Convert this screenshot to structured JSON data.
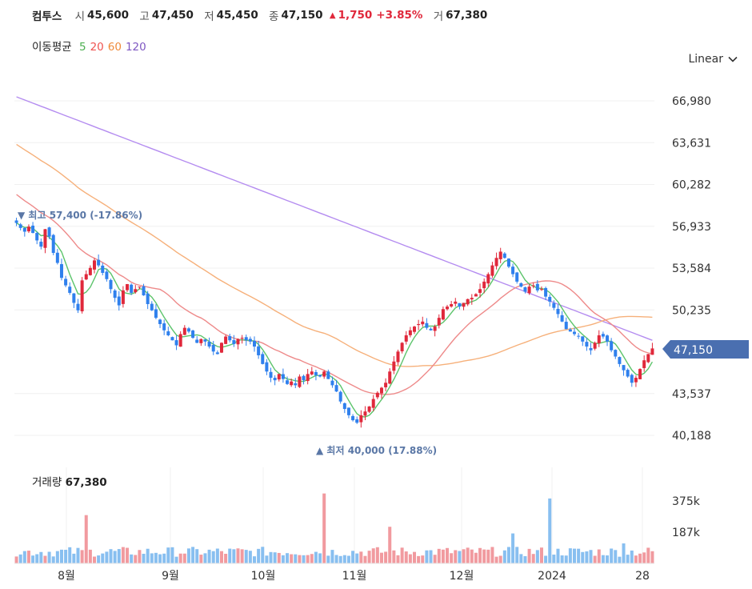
{
  "header": {
    "name": "컴투스",
    "open_label": "시",
    "open": "45,600",
    "high_label": "고",
    "high": "47,450",
    "low_label": "저",
    "low": "45,450",
    "close_label": "종",
    "close": "47,150",
    "change_arrow": "▲",
    "change": "1,750",
    "change_pct": "+3.85%",
    "volume_label": "거",
    "volume": "67,380"
  },
  "moving_average": {
    "label": "이동평균",
    "periods": [
      {
        "value": "5",
        "color": "#4caf50"
      },
      {
        "value": "20",
        "color": "#ef5350"
      },
      {
        "value": "60",
        "color": "#ef8a3a"
      },
      {
        "value": "120",
        "color": "#7e57c2"
      }
    ]
  },
  "scale_selector": {
    "label": "Linear",
    "icon": "chevron-down-icon"
  },
  "volume_panel": {
    "label": "거래량",
    "value": "67,380"
  },
  "colors": {
    "up": "#e0283b",
    "down": "#2f80ed",
    "vol_up": "#f19a9f",
    "vol_down": "#88bff0",
    "ma5": "#5cc46b",
    "ma20": "#ee8a8a",
    "ma60": "#f6b07a",
    "ma120": "#b48cf0",
    "tag": "#4a6fb0"
  },
  "chart_data": {
    "type": "candlestick",
    "y_ticks": [
      "66,980",
      "63,631",
      "60,282",
      "56,933",
      "53,584",
      "50,235",
      "43,537",
      "40,188"
    ],
    "ylim": [
      40188,
      66980
    ],
    "x_ticks": [
      "8월",
      "9월",
      "10월",
      "11월",
      "12월",
      "2024",
      "28"
    ],
    "current_price_tag": "47,150",
    "high_annotation": {
      "arrow": "▼",
      "label": "최고",
      "value": "57,400 (-17.86%)",
      "price": 57400
    },
    "low_annotation": {
      "arrow": "▲",
      "label": "최저",
      "value": "40,000 (17.88%)",
      "price": 40000
    },
    "close_series": [
      57200,
      56800,
      56500,
      56900,
      56400,
      55800,
      55300,
      56700,
      56100,
      54800,
      54000,
      52800,
      52200,
      51600,
      50800,
      50200,
      52600,
      53100,
      53600,
      54200,
      53800,
      53200,
      52700,
      51900,
      51200,
      50600,
      51800,
      52300,
      51600,
      51900,
      52100,
      51400,
      50700,
      50200,
      49600,
      49100,
      48600,
      48200,
      47800,
      47400,
      48300,
      48800,
      48500,
      48000,
      47600,
      47900,
      47700,
      47300,
      46900,
      46700,
      47600,
      48100,
      47800,
      47500,
      47900,
      48000,
      47800,
      47700,
      47300,
      46600,
      45900,
      45300,
      44800,
      44600,
      45100,
      44700,
      44300,
      44500,
      44200,
      44900,
      44600,
      45100,
      45300,
      45000,
      44900,
      45300,
      44700,
      44200,
      43700,
      42900,
      42300,
      41800,
      41400,
      41200,
      41800,
      42100,
      42500,
      43100,
      43600,
      44000,
      44400,
      45300,
      46100,
      46900,
      47600,
      48200,
      48600,
      48900,
      49100,
      49300,
      48800,
      48600,
      48900,
      49600,
      50300,
      50500,
      50700,
      50900,
      50500,
      50800,
      51100,
      51200,
      51500,
      51900,
      52500,
      53100,
      53800,
      54400,
      54900,
      54400,
      53700,
      53100,
      52500,
      52100,
      51700,
      52100,
      52200,
      51800,
      51900,
      51300,
      50900,
      50400,
      49900,
      49300,
      48700,
      48500,
      48300,
      48100,
      47700,
      47300,
      47000,
      47600,
      48200,
      48100,
      47700,
      47000,
      46500,
      45900,
      45400,
      44900,
      44400,
      44800,
      45500,
      46200,
      46700,
      47150
    ],
    "ma120_endpoints": [
      67300,
      47800
    ],
    "volume_ticks": [
      "375k",
      "187k"
    ],
    "volume_max": 500000
  }
}
